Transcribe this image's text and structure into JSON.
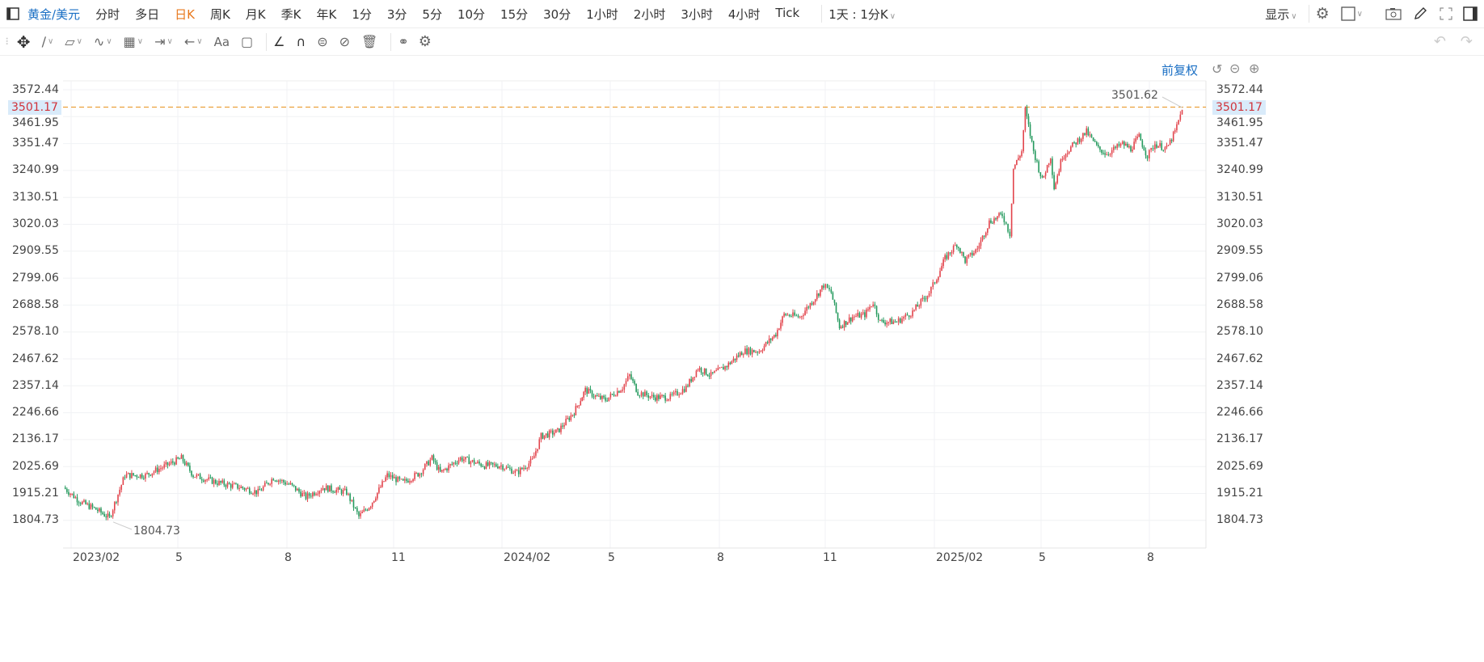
{
  "toolbar": {
    "symbol": "黄金/美元",
    "periods": [
      "分时",
      "多日",
      "日K",
      "周K",
      "月K",
      "季K",
      "年K",
      "1分",
      "3分",
      "5分",
      "10分",
      "15分",
      "30分",
      "1小时",
      "2小时",
      "3小时",
      "4小时",
      "Tick"
    ],
    "active_period": "日K",
    "custom_period": "1天 : 1分K",
    "display_label": "显示"
  },
  "chart_header": {
    "adjust_label": "前复权"
  },
  "colors": {
    "up": "#e2444c",
    "down": "#259a5e",
    "price_line": "#e8921c",
    "price_label": "#d0323a",
    "accent": "#1a6fc4",
    "active": "#e8781c"
  },
  "price": {
    "current": "3501.17",
    "high_label": "3501.62",
    "low_label": "1804.73"
  },
  "chart_data": {
    "type": "candlestick",
    "title": "",
    "y_ticks": [
      "3572.44",
      "3461.95",
      "3351.47",
      "3240.99",
      "3130.51",
      "3020.03",
      "2909.55",
      "2799.06",
      "2688.58",
      "2578.10",
      "2467.62",
      "2357.14",
      "2246.66",
      "2136.17",
      "2025.69",
      "1915.21",
      "1804.73"
    ],
    "ylim": [
      1804.73,
      3572.44
    ],
    "x_ticks": [
      "2023/02",
      "5",
      "8",
      "11",
      "2024/02",
      "5",
      "8",
      "11",
      "2025/02",
      "5",
      "8"
    ],
    "grid": true,
    "approx_closes": [
      [
        "2023-01-25",
        1940
      ],
      [
        "2023-02-09",
        1880
      ],
      [
        "2023-02-22",
        1850
      ],
      [
        "2023-03-03",
        1815
      ],
      [
        "2023-03-16",
        1990
      ],
      [
        "2023-04-03",
        1990
      ],
      [
        "2023-04-16",
        2020
      ],
      [
        "2023-05-03",
        2060
      ],
      [
        "2023-05-13",
        1990
      ],
      [
        "2023-06-03",
        1960
      ],
      [
        "2023-06-23",
        1940
      ],
      [
        "2023-07-07",
        1920
      ],
      [
        "2023-07-20",
        1980
      ],
      [
        "2023-08-04",
        1950
      ],
      [
        "2023-08-17",
        1900
      ],
      [
        "2023-09-01",
        1940
      ],
      [
        "2023-09-21",
        1920
      ],
      [
        "2023-10-01",
        1820
      ],
      [
        "2023-10-11",
        1870
      ],
      [
        "2023-10-25",
        1990
      ],
      [
        "2023-11-08",
        1960
      ],
      [
        "2023-11-22",
        2000
      ],
      [
        "2023-12-02",
        2060
      ],
      [
        "2023-12-09",
        2000
      ],
      [
        "2023-12-26",
        2060
      ],
      [
        "2024-01-16",
        2030
      ],
      [
        "2024-01-30",
        2030
      ],
      [
        "2024-02-13",
        2000
      ],
      [
        "2024-02-26",
        2050
      ],
      [
        "2024-03-03",
        2150
      ],
      [
        "2024-03-17",
        2170
      ],
      [
        "2024-03-31",
        2250
      ],
      [
        "2024-04-10",
        2340
      ],
      [
        "2024-04-20",
        2310
      ],
      [
        "2024-04-27",
        2300
      ],
      [
        "2024-05-11",
        2350
      ],
      [
        "2024-05-17",
        2400
      ],
      [
        "2024-05-24",
        2330
      ],
      [
        "2024-06-07",
        2310
      ],
      [
        "2024-06-21",
        2310
      ],
      [
        "2024-07-04",
        2350
      ],
      [
        "2024-07-14",
        2430
      ],
      [
        "2024-07-25",
        2400
      ],
      [
        "2024-08-08",
        2440
      ],
      [
        "2024-08-22",
        2500
      ],
      [
        "2024-09-05",
        2500
      ],
      [
        "2024-09-19",
        2570
      ],
      [
        "2024-09-26",
        2650
      ],
      [
        "2024-10-09",
        2640
      ],
      [
        "2024-10-22",
        2720
      ],
      [
        "2024-10-29",
        2770
      ],
      [
        "2024-11-05",
        2740
      ],
      [
        "2024-11-12",
        2600
      ],
      [
        "2024-11-23",
        2640
      ],
      [
        "2024-12-03",
        2650
      ],
      [
        "2024-12-10",
        2700
      ],
      [
        "2024-12-16",
        2620
      ],
      [
        "2024-12-30",
        2620
      ],
      [
        "2025-01-13",
        2660
      ],
      [
        "2025-01-27",
        2740
      ],
      [
        "2025-02-03",
        2800
      ],
      [
        "2025-02-10",
        2880
      ],
      [
        "2025-02-20",
        2940
      ],
      [
        "2025-02-27",
        2870
      ],
      [
        "2025-03-07",
        2920
      ],
      [
        "2025-03-17",
        3030
      ],
      [
        "2025-03-28",
        3060
      ],
      [
        "2025-04-04",
        2980
      ],
      [
        "2025-04-07",
        3250
      ],
      [
        "2025-04-14",
        3320
      ],
      [
        "2025-04-17",
        3490
      ],
      [
        "2025-04-24",
        3320
      ],
      [
        "2025-05-01",
        3200
      ],
      [
        "2025-05-08",
        3300
      ],
      [
        "2025-05-11",
        3170
      ],
      [
        "2025-05-18",
        3300
      ],
      [
        "2025-05-28",
        3350
      ],
      [
        "2025-06-08",
        3400
      ],
      [
        "2025-06-18",
        3330
      ],
      [
        "2025-06-25",
        3310
      ],
      [
        "2025-07-08",
        3350
      ],
      [
        "2025-07-15",
        3330
      ],
      [
        "2025-07-22",
        3380
      ],
      [
        "2025-07-29",
        3300
      ],
      [
        "2025-08-05",
        3350
      ],
      [
        "2025-08-15",
        3330
      ],
      [
        "2025-08-22",
        3400
      ],
      [
        "2025-08-28",
        3490
      ]
    ]
  }
}
